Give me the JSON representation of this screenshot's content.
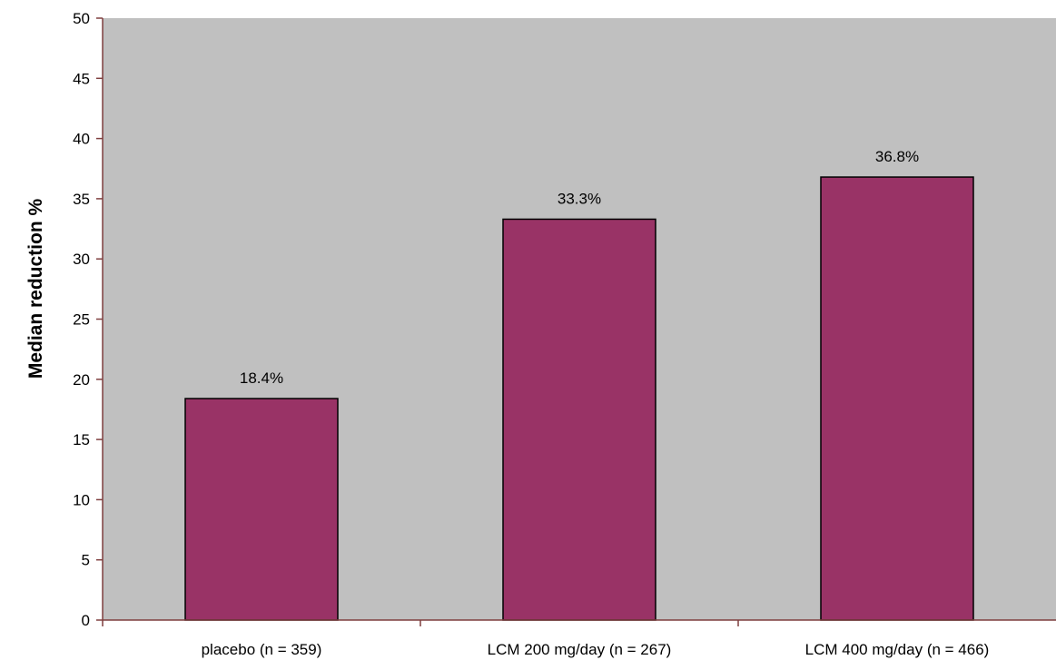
{
  "chart_data": {
    "type": "bar",
    "categories": [
      "placebo (n = 359)",
      "LCM 200 mg/day (n = 267)",
      "LCM 400 mg/day (n = 466)"
    ],
    "values": [
      18.4,
      33.3,
      36.8
    ],
    "data_labels": [
      "18.4%",
      "33.3%",
      "36.8%"
    ],
    "title": "",
    "xlabel": "",
    "ylabel": "Median reduction %",
    "ylim": [
      0,
      50
    ],
    "yticks": [
      0,
      5,
      10,
      15,
      20,
      25,
      30,
      35,
      40,
      45,
      50
    ],
    "grid": false,
    "legend": "none",
    "colors": {
      "bar": "#993366",
      "plot_background": "#c0c0c0",
      "axis": "#7f3f3f"
    }
  }
}
